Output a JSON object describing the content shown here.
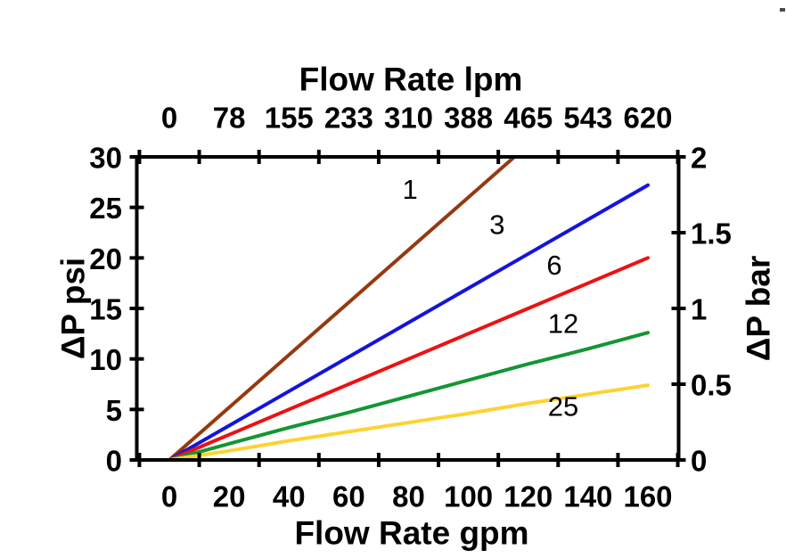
{
  "chart_data": {
    "type": "line",
    "top_axis_title": "Flow Rate lpm",
    "bottom_axis_title": "Flow Rate gpm",
    "left_axis_title": "ΔP psi",
    "right_axis_title": "ΔP bar",
    "x_gpm": [
      0,
      20,
      40,
      60,
      80,
      100,
      120,
      140,
      160
    ],
    "top_axis_labels_lpm": [
      "0",
      "78",
      "155",
      "233",
      "310",
      "388",
      "465",
      "543",
      "620"
    ],
    "bottom_axis_labels_gpm": [
      "0",
      "20",
      "40",
      "60",
      "80",
      "100",
      "120",
      "140",
      "160"
    ],
    "left_ticks_psi": [
      "0",
      "5",
      "10",
      "15",
      "20",
      "25",
      "30"
    ],
    "right_ticks_bar": [
      "0",
      "0.5",
      "1",
      "1.5",
      "2"
    ],
    "xlim_gpm": [
      0,
      160
    ],
    "ylim_psi": [
      0,
      30
    ],
    "ylim_bar": [
      0,
      2
    ],
    "grid": "off",
    "legend": "inline-curve-labels",
    "axis_color": "#000000",
    "series": [
      {
        "name": "1",
        "color": "#96390F",
        "values": [
          0,
          5.2,
          10.4,
          15.6,
          20.8,
          26.0,
          31.2,
          36.4,
          41.6
        ],
        "clipped_at_top": true,
        "label_at": {
          "gpm": 80.5,
          "psi": 26.8
        }
      },
      {
        "name": "3",
        "color": "#1414DC",
        "values": [
          0,
          3.4,
          6.8,
          10.2,
          13.6,
          17.0,
          20.4,
          23.8,
          27.2
        ],
        "clipped_at_top": false,
        "label_at": {
          "gpm": 109.6,
          "psi": 23.3
        }
      },
      {
        "name": "6",
        "color": "#ED1111",
        "values": [
          0,
          2.5,
          5.0,
          7.5,
          10.0,
          12.5,
          15.0,
          17.5,
          20.0
        ],
        "clipped_at_top": false,
        "label_at": {
          "gpm": 128.7,
          "psi": 19.3
        }
      },
      {
        "name": "12",
        "color": "#149632",
        "values": [
          0,
          1.6,
          3.2,
          4.7,
          6.3,
          7.9,
          9.5,
          11.0,
          12.6
        ],
        "clipped_at_top": false,
        "label_at": {
          "gpm": 131.7,
          "psi": 13.5
        }
      },
      {
        "name": "25",
        "color": "#FFD232",
        "values": [
          0,
          0.9,
          1.9,
          2.8,
          3.7,
          4.6,
          5.6,
          6.5,
          7.4
        ],
        "clipped_at_top": false,
        "label_at": {
          "gpm": 131.7,
          "psi": 5.3
        }
      }
    ]
  }
}
